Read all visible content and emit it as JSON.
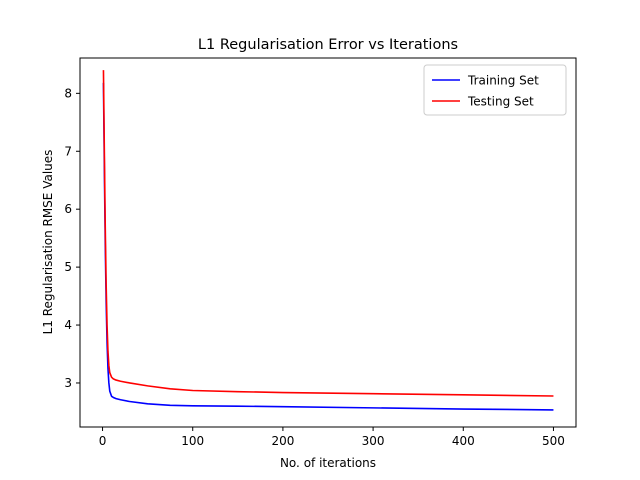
{
  "chart_data": {
    "type": "line",
    "title": "L1 Regularisation Error vs Iterations",
    "xlabel": "No. of iterations",
    "ylabel": "L1 Regularisation RMSE Values",
    "xlim": [
      -25,
      525
    ],
    "ylim": [
      2.24,
      8.61
    ],
    "xticks": [
      0,
      100,
      200,
      300,
      400,
      500
    ],
    "yticks": [
      3,
      4,
      5,
      6,
      7,
      8
    ],
    "grid": false,
    "legend_position": "top-right",
    "series": [
      {
        "name": "Training Set",
        "color": "#0000ff",
        "x": [
          1,
          2,
          3,
          4,
          5,
          6,
          7,
          8,
          10,
          12,
          15,
          20,
          30,
          50,
          75,
          100,
          150,
          200,
          300,
          400,
          500
        ],
        "y": [
          8.18,
          6.7,
          5.4,
          4.4,
          3.7,
          3.25,
          3.0,
          2.86,
          2.77,
          2.75,
          2.73,
          2.71,
          2.68,
          2.64,
          2.615,
          2.605,
          2.6,
          2.59,
          2.57,
          2.55,
          2.535
        ]
      },
      {
        "name": "Testing Set",
        "color": "#ff0000",
        "x": [
          1,
          2,
          3,
          4,
          5,
          6,
          7,
          8,
          10,
          12,
          15,
          20,
          30,
          50,
          75,
          100,
          150,
          200,
          300,
          400,
          500
        ],
        "y": [
          8.4,
          7.0,
          5.7,
          4.7,
          4.0,
          3.55,
          3.3,
          3.18,
          3.1,
          3.07,
          3.05,
          3.03,
          3.0,
          2.95,
          2.9,
          2.87,
          2.85,
          2.835,
          2.815,
          2.795,
          2.775
        ]
      }
    ]
  }
}
